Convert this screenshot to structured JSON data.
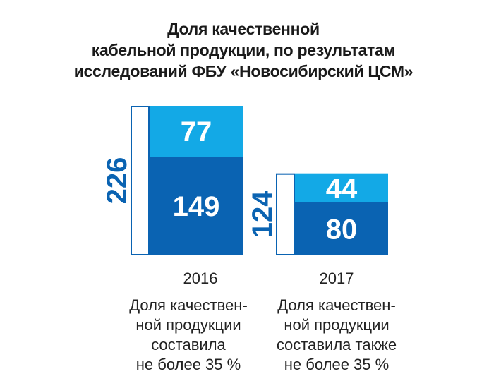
{
  "title_lines": [
    "Доля качественной",
    "кабельной продукции, по результатам",
    "исследований ФБУ «Новосибирский ЦСМ»"
  ],
  "chart_data": {
    "type": "bar",
    "categories": [
      "2016",
      "2017"
    ],
    "totals": [
      226,
      124
    ],
    "series": [
      {
        "values": [
          149,
          80
        ],
        "color": "#0a63b2"
      },
      {
        "values": [
          77,
          44
        ],
        "color": "#13a9e6"
      }
    ],
    "ylim": [
      0,
      226
    ]
  },
  "notes": [
    [
      "Доля качествен-",
      "ной продукции",
      "составила",
      "не более 35 %"
    ],
    [
      "Доля качествен-",
      "ной продукции",
      "составила также",
      "не более 35 %"
    ]
  ],
  "colors": {
    "total_frame": "#0a63b2",
    "total_label": "#0a63b2",
    "value_label": "#ffffff"
  }
}
